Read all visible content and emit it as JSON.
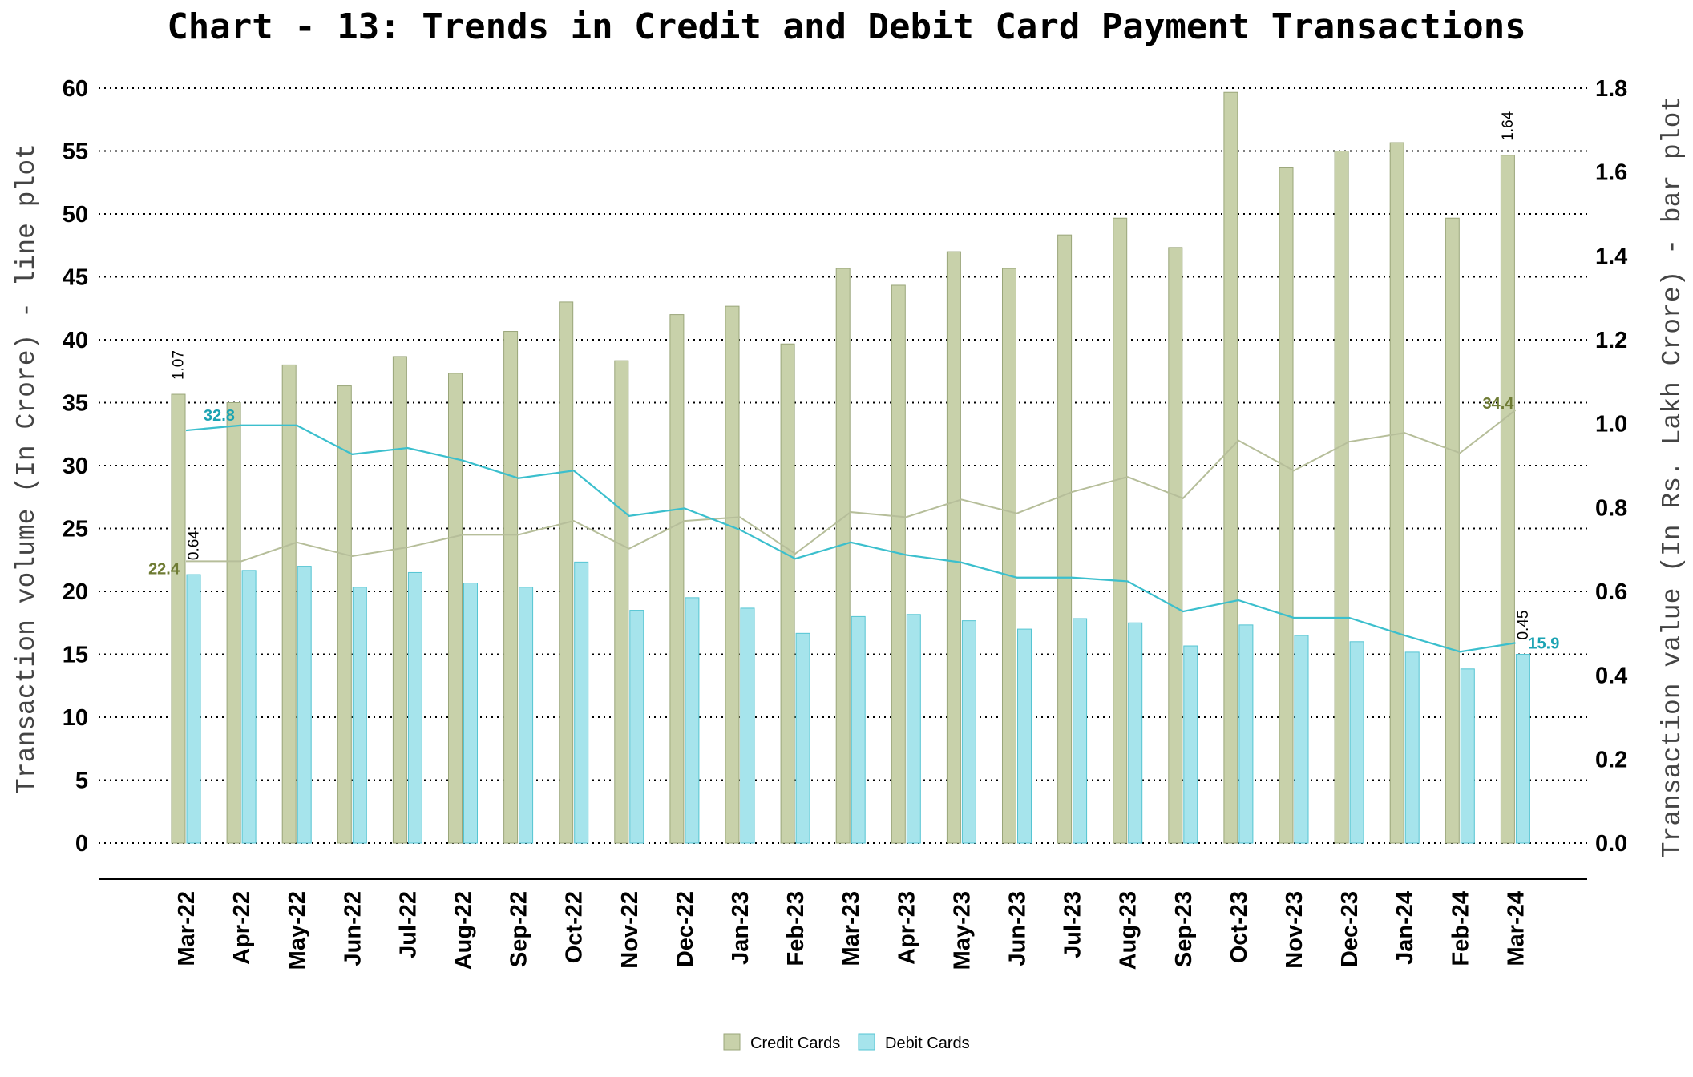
{
  "chart_data": {
    "type": "bar+line",
    "title": "Chart - 13: Trends in Credit and Debit Card Payment Transactions",
    "ylabel_left": "Transaction volume (In Crore) - line plot",
    "ylabel_right": "Transaction value (In Rs. Lakh Crore) - bar plot",
    "ylim_left": [
      0,
      60
    ],
    "ylim_right": [
      0,
      1.8
    ],
    "yticks_left": [
      "0",
      "5",
      "10",
      "15",
      "20",
      "25",
      "30",
      "35",
      "40",
      "45",
      "50",
      "55",
      "60"
    ],
    "yticks_right": [
      "0.0",
      "0.2",
      "0.4",
      "0.6",
      "0.8",
      "1.0",
      "1.2",
      "1.4",
      "1.6",
      "1.8"
    ],
    "grid": true,
    "legend_position": "bottom",
    "categories": [
      "Mar-22",
      "Apr-22",
      "May-22",
      "Jun-22",
      "Jul-22",
      "Aug-22",
      "Sep-22",
      "Oct-22",
      "Nov-22",
      "Dec-22",
      "Jan-23",
      "Feb-23",
      "Mar-23",
      "Apr-23",
      "May-23",
      "Jun-23",
      "Jul-23",
      "Aug-23",
      "Sep-23",
      "Oct-23",
      "Nov-23",
      "Dec-23",
      "Jan-24",
      "Feb-24",
      "Mar-24"
    ],
    "bar_series": [
      {
        "name": "Credit Cards",
        "color": "#c8d1aa",
        "stroke": "#9aa67a",
        "values": [
          1.07,
          1.05,
          1.14,
          1.09,
          1.16,
          1.12,
          1.22,
          1.29,
          1.15,
          1.26,
          1.28,
          1.19,
          1.37,
          1.33,
          1.41,
          1.37,
          1.45,
          1.49,
          1.42,
          1.79,
          1.61,
          1.65,
          1.67,
          1.49,
          1.64
        ]
      },
      {
        "name": "Debit Cards",
        "color": "#a6e4ec",
        "stroke": "#55c5d3",
        "values": [
          0.64,
          0.65,
          0.66,
          0.61,
          0.645,
          0.62,
          0.61,
          0.67,
          0.555,
          0.585,
          0.56,
          0.5,
          0.54,
          0.545,
          0.53,
          0.51,
          0.535,
          0.525,
          0.47,
          0.52,
          0.495,
          0.48,
          0.455,
          0.415,
          0.45
        ]
      }
    ],
    "line_series": [
      {
        "name": "Credit Cards",
        "color": "#b6be9a",
        "label_color": "#6e7b33",
        "values": [
          22.4,
          22.4,
          23.9,
          22.8,
          23.5,
          24.5,
          24.5,
          25.6,
          23.4,
          25.6,
          25.9,
          23.0,
          26.3,
          25.9,
          27.3,
          26.2,
          27.9,
          29.1,
          27.4,
          32.0,
          29.6,
          31.9,
          32.6,
          31.0,
          34.4
        ]
      },
      {
        "name": "Debit Cards",
        "color": "#3bbfcd",
        "label_color": "#1aa3b3",
        "values": [
          32.8,
          33.2,
          33.2,
          30.9,
          31.4,
          30.4,
          29.0,
          29.6,
          26.0,
          26.6,
          24.9,
          22.6,
          23.9,
          22.9,
          22.3,
          21.1,
          21.1,
          20.8,
          18.4,
          19.3,
          17.9,
          17.9,
          16.5,
          15.2,
          15.9
        ]
      }
    ],
    "bar_labels": [
      {
        "text": "1.07",
        "series": 0,
        "index": 0
      },
      {
        "text": "0.64",
        "series": 1,
        "index": 0
      },
      {
        "text": "1.64",
        "series": 0,
        "index": 24
      },
      {
        "text": "0.45",
        "series": 1,
        "index": 24
      }
    ],
    "line_labels": [
      {
        "text": "32.8",
        "series": 1,
        "index": 0
      },
      {
        "text": "22.4",
        "series": 0,
        "index": 0
      },
      {
        "text": "34.4",
        "series": 0,
        "index": 24
      },
      {
        "text": "15.9",
        "series": 1,
        "index": 24
      }
    ],
    "legend": [
      "Credit Cards",
      "Debit Cards"
    ]
  }
}
